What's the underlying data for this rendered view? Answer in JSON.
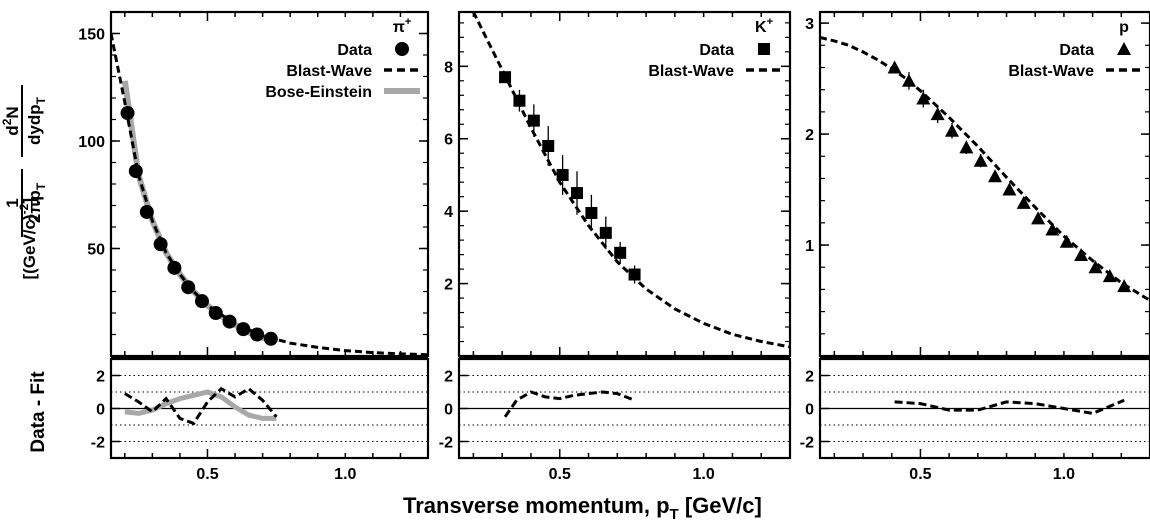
{
  "figure": {
    "xlabel": "Transverse momentum,  p",
    "xlabel_sub": "T",
    "xlabel_unit": " [GeV/c]",
    "ylabel_top": "Data - Fit",
    "ylabel_unit": "[(GeV/c)",
    "ylabel_unit_sup": "-2",
    "ylabel_unit_close": "]"
  },
  "chart_data": [
    {
      "type": "scatter",
      "panel": "pi+",
      "particle_label": "π",
      "particle_sup": "+",
      "legend": [
        {
          "label": "Data",
          "marker": "circle"
        },
        {
          "label": "Blast-Wave",
          "marker": "dashed"
        },
        {
          "label": "Bose-Einstein",
          "marker": "gray-line"
        }
      ],
      "xlim": [
        0.15,
        1.3
      ],
      "ylim": [
        0,
        160
      ],
      "xticks": [
        0.5,
        1.0
      ],
      "xticklabels": [
        "0.5",
        "1.0"
      ],
      "yticks": [
        50,
        100,
        150
      ],
      "yticklabels": [
        "50",
        "100",
        "150"
      ],
      "data": {
        "x": [
          0.21,
          0.24,
          0.28,
          0.33,
          0.38,
          0.43,
          0.48,
          0.53,
          0.58,
          0.63,
          0.68,
          0.73
        ],
        "y": [
          113,
          86,
          67,
          52,
          41,
          32,
          25.5,
          20,
          16,
          12.5,
          10,
          8
        ]
      },
      "blast_wave": {
        "x": [
          0.15,
          0.2,
          0.25,
          0.3,
          0.35,
          0.4,
          0.45,
          0.5,
          0.6,
          0.7,
          0.8,
          0.9,
          1.0,
          1.1,
          1.2,
          1.3
        ],
        "y": [
          150,
          118,
          84,
          63,
          48,
          38,
          30,
          23.5,
          15,
          9.5,
          6,
          4,
          2.5,
          1.6,
          1.0,
          0.6
        ]
      },
      "bose_einstein": {
        "x": [
          0.2,
          0.25,
          0.3,
          0.35,
          0.4,
          0.45,
          0.5,
          0.55,
          0.6,
          0.65,
          0.7,
          0.75
        ],
        "y": [
          128,
          84,
          63,
          48,
          38,
          30,
          23.5,
          18.5,
          14.5,
          11,
          8.5,
          7
        ]
      },
      "residual": {
        "ylim": [
          -3,
          3
        ],
        "yticks": [
          -2,
          0,
          2
        ],
        "yticklabels": [
          "-2",
          "0",
          "2"
        ],
        "dotted_levels": [
          2,
          1,
          -1,
          -2
        ],
        "blast_wave": {
          "x": [
            0.2,
            0.25,
            0.3,
            0.35,
            0.4,
            0.45,
            0.5,
            0.55,
            0.6,
            0.65,
            0.7,
            0.75
          ],
          "y": [
            0.9,
            0.4,
            -0.2,
            0.6,
            -0.6,
            -0.9,
            0.4,
            1.2,
            0.7,
            1.2,
            0.5,
            -0.5
          ]
        },
        "bose_einstein": {
          "x": [
            0.2,
            0.25,
            0.3,
            0.35,
            0.4,
            0.45,
            0.5,
            0.55,
            0.6,
            0.65,
            0.7,
            0.75
          ],
          "y": [
            -0.2,
            -0.3,
            -0.1,
            0.3,
            0.6,
            0.8,
            1.0,
            0.7,
            0.1,
            -0.4,
            -0.6,
            -0.6
          ]
        }
      }
    },
    {
      "type": "scatter",
      "panel": "K+",
      "particle_label": "K",
      "particle_sup": "+",
      "legend": [
        {
          "label": "Data",
          "marker": "square"
        },
        {
          "label": "Blast-Wave",
          "marker": "dashed"
        }
      ],
      "xlim": [
        0.15,
        1.3
      ],
      "ylim": [
        0,
        9.5
      ],
      "xticks": [
        0.5,
        1.0
      ],
      "xticklabels": [
        "0.5",
        "1.0"
      ],
      "yticks": [
        2,
        4,
        6,
        8
      ],
      "yticklabels": [
        "2",
        "4",
        "6",
        "8"
      ],
      "data": {
        "x": [
          0.31,
          0.36,
          0.41,
          0.46,
          0.51,
          0.56,
          0.61,
          0.66,
          0.71,
          0.76
        ],
        "y": [
          7.7,
          7.05,
          6.5,
          5.8,
          5.0,
          4.5,
          3.95,
          3.4,
          2.85,
          2.25
        ],
        "yerr": [
          0.15,
          0.3,
          0.45,
          0.55,
          0.55,
          0.6,
          0.5,
          0.45,
          0.3,
          0.25
        ]
      },
      "blast_wave": {
        "x": [
          0.2,
          0.25,
          0.3,
          0.35,
          0.4,
          0.45,
          0.5,
          0.6,
          0.7,
          0.8,
          0.9,
          1.0,
          1.1,
          1.2,
          1.3
        ],
        "y": [
          9.5,
          8.7,
          7.9,
          7.1,
          6.3,
          5.55,
          4.8,
          3.6,
          2.6,
          1.85,
          1.3,
          0.9,
          0.6,
          0.4,
          0.25
        ]
      },
      "residual": {
        "ylim": [
          -3,
          3
        ],
        "yticks": [
          -2,
          0,
          2
        ],
        "yticklabels": [
          "-2",
          "0",
          "2"
        ],
        "dotted_levels": [
          2,
          1,
          -1,
          -2
        ],
        "blast_wave": {
          "x": [
            0.31,
            0.35,
            0.4,
            0.45,
            0.5,
            0.55,
            0.6,
            0.65,
            0.7,
            0.76
          ],
          "y": [
            -0.5,
            0.5,
            1.0,
            0.7,
            0.6,
            0.8,
            0.9,
            1.0,
            0.9,
            0.5
          ]
        }
      }
    },
    {
      "type": "scatter",
      "panel": "p",
      "particle_label": "p",
      "particle_sup": "",
      "legend": [
        {
          "label": "Data",
          "marker": "triangle"
        },
        {
          "label": "Blast-Wave",
          "marker": "dashed"
        }
      ],
      "xlim": [
        0.15,
        1.3
      ],
      "ylim": [
        0,
        3.1
      ],
      "xticks": [
        0.5,
        1.0
      ],
      "xticklabels": [
        "0.5",
        "1.0"
      ],
      "yticks": [
        1,
        2,
        3
      ],
      "yticklabels": [
        "1",
        "2",
        "3"
      ],
      "data": {
        "x": [
          0.41,
          0.46,
          0.51,
          0.56,
          0.61,
          0.66,
          0.71,
          0.76,
          0.81,
          0.86,
          0.91,
          0.96,
          1.01,
          1.06,
          1.11,
          1.16,
          1.21
        ],
        "y": [
          2.6,
          2.48,
          2.32,
          2.18,
          2.03,
          1.88,
          1.76,
          1.62,
          1.5,
          1.38,
          1.24,
          1.14,
          1.03,
          0.91,
          0.8,
          0.72,
          0.63
        ],
        "yerr": [
          0.05,
          0.08,
          0.08,
          0.08,
          0.07,
          0.06,
          0.06,
          0.05,
          0.05,
          0.05,
          0.05,
          0.04,
          0.04,
          0.04,
          0.04,
          0.04,
          0.04
        ]
      },
      "blast_wave": {
        "x": [
          0.15,
          0.2,
          0.25,
          0.3,
          0.35,
          0.4,
          0.45,
          0.5,
          0.6,
          0.7,
          0.8,
          0.9,
          1.0,
          1.1,
          1.2,
          1.3
        ],
        "y": [
          2.87,
          2.84,
          2.8,
          2.74,
          2.67,
          2.59,
          2.5,
          2.39,
          2.15,
          1.89,
          1.61,
          1.34,
          1.08,
          0.86,
          0.66,
          0.5
        ]
      },
      "residual": {
        "ylim": [
          -3,
          3
        ],
        "yticks": [
          -2,
          0,
          2
        ],
        "yticklabels": [
          "-2",
          "0",
          "2"
        ],
        "dotted_levels": [
          2,
          1,
          -1,
          -2
        ],
        "blast_wave": {
          "x": [
            0.41,
            0.5,
            0.6,
            0.7,
            0.8,
            0.9,
            1.0,
            1.1,
            1.21
          ],
          "y": [
            0.4,
            0.3,
            -0.1,
            -0.1,
            0.4,
            0.3,
            0.0,
            -0.3,
            0.5
          ]
        }
      }
    }
  ]
}
